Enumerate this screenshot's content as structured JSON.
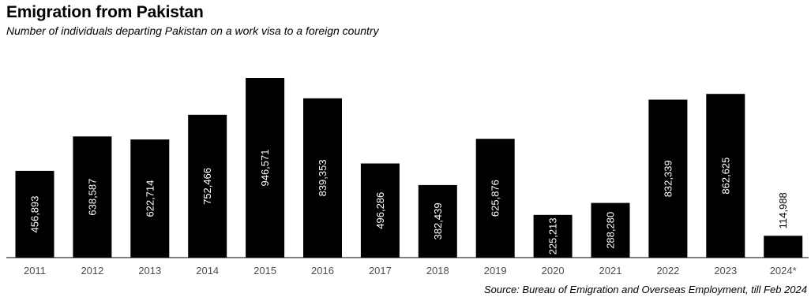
{
  "title": "Emigration from Pakistan",
  "subtitle": "Number of individuals departing Pakistan on a work visa to a foreign country",
  "source": "Source: Bureau of Emigration and Overseas Employment, till Feb 2024",
  "colors": {
    "bar": "#000000",
    "label_inside": "#ffffff",
    "label_outside": "#000000",
    "axis": "#000000",
    "tick_text": "#4d4d4d"
  },
  "chart_data": {
    "type": "bar",
    "title": "Emigration from Pakistan",
    "subtitle": "Number of individuals departing Pakistan on a work visa to a foreign country",
    "xlabel": "",
    "ylabel": "",
    "grid": false,
    "legend": "none",
    "ylim": [
      0,
      946571
    ],
    "categories": [
      "2011",
      "2012",
      "2013",
      "2014",
      "2015",
      "2016",
      "2017",
      "2018",
      "2019",
      "2020",
      "2021",
      "2022",
      "2023",
      "2024*"
    ],
    "values": [
      456893,
      638587,
      622714,
      752466,
      946571,
      839353,
      496286,
      382439,
      625876,
      225213,
      288280,
      832339,
      862625,
      114988
    ],
    "labels": [
      "456,893",
      "638,587",
      "622,714",
      "752,466",
      "946,571",
      "839,353",
      "496,286",
      "382,439",
      "625,876",
      "225,213",
      "288,280",
      "832,339",
      "862,625",
      "114,988"
    ],
    "label_position": [
      "inside",
      "inside",
      "inside",
      "inside",
      "inside",
      "inside",
      "inside",
      "inside",
      "inside",
      "inside",
      "inside",
      "inside",
      "inside",
      "outside"
    ]
  }
}
